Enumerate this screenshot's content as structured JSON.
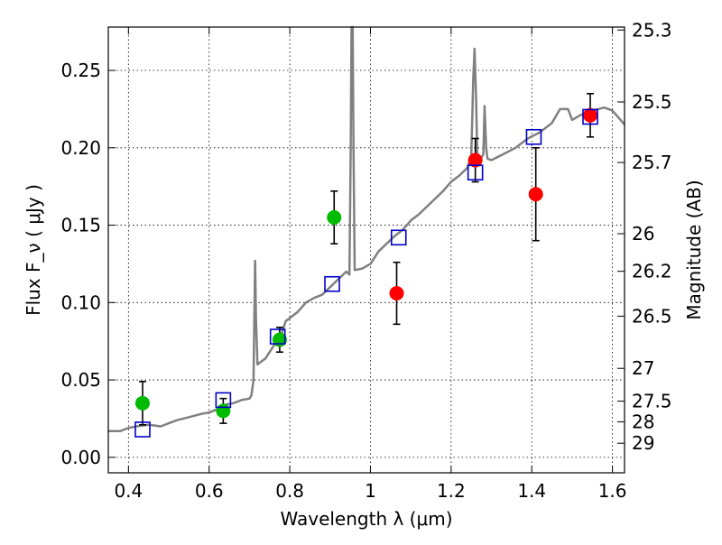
{
  "chart_data": {
    "type": "scatter",
    "xlabel": "Wavelength  λ (μm)",
    "ylabel": "Flux  F_ν  ( μJy )",
    "y2label": "Magnitude (AB)",
    "xlim": [
      0.35,
      1.63
    ],
    "ylim": [
      -0.01,
      0.278
    ],
    "grid": true,
    "x_ticks": [
      0.4,
      0.6,
      0.8,
      1,
      1.2,
      1.4,
      1.6
    ],
    "x_tick_labels": [
      "0.4",
      "0.6",
      "0.8",
      "1",
      "1.2",
      "1.4",
      "1.6"
    ],
    "y_ticks": [
      0.0,
      0.05,
      0.1,
      0.15,
      0.2,
      0.25
    ],
    "y_tick_labels": [
      "0.00",
      "0.05",
      "0.10",
      "0.15",
      "0.20",
      "0.25"
    ],
    "mag_ticks": [
      {
        "label": "25.3",
        "flux": 0.2761
      },
      {
        "label": "25.5",
        "flux": 0.2296
      },
      {
        "label": "25.7",
        "flux": 0.1905
      },
      {
        "label": "26",
        "flux": 0.1445
      },
      {
        "label": "26.2",
        "flux": 0.1202
      },
      {
        "label": "26.5",
        "flux": 0.0912
      },
      {
        "label": "27",
        "flux": 0.0575
      },
      {
        "label": "27.5",
        "flux": 0.0363
      },
      {
        "label": "28",
        "flux": 0.0229
      },
      {
        "label": "29",
        "flux": 0.0091
      }
    ],
    "model_spectrum": {
      "color": "#808080",
      "points": [
        [
          0.35,
          0.017
        ],
        [
          0.38,
          0.017
        ],
        [
          0.4,
          0.019
        ],
        [
          0.42,
          0.02
        ],
        [
          0.45,
          0.021
        ],
        [
          0.48,
          0.02
        ],
        [
          0.5,
          0.022
        ],
        [
          0.52,
          0.024
        ],
        [
          0.55,
          0.026
        ],
        [
          0.58,
          0.028
        ],
        [
          0.6,
          0.029
        ],
        [
          0.62,
          0.031
        ],
        [
          0.64,
          0.034
        ],
        [
          0.66,
          0.035
        ],
        [
          0.68,
          0.037
        ],
        [
          0.7,
          0.038
        ],
        [
          0.705,
          0.04
        ],
        [
          0.71,
          0.05
        ],
        [
          0.712,
          0.09
        ],
        [
          0.714,
          0.127
        ],
        [
          0.716,
          0.09
        ],
        [
          0.72,
          0.06
        ],
        [
          0.74,
          0.064
        ],
        [
          0.76,
          0.072
        ],
        [
          0.78,
          0.08
        ],
        [
          0.79,
          0.088
        ],
        [
          0.8,
          0.09
        ],
        [
          0.82,
          0.094
        ],
        [
          0.84,
          0.1
        ],
        [
          0.86,
          0.103
        ],
        [
          0.88,
          0.105
        ],
        [
          0.9,
          0.11
        ],
        [
          0.92,
          0.115
        ],
        [
          0.94,
          0.12
        ],
        [
          0.948,
          0.118
        ],
        [
          0.951,
          0.2
        ],
        [
          0.953,
          0.278
        ],
        [
          0.956,
          0.278
        ],
        [
          0.958,
          0.2
        ],
        [
          0.961,
          0.121
        ],
        [
          0.98,
          0.122
        ],
        [
          1.0,
          0.125
        ],
        [
          1.02,
          0.133
        ],
        [
          1.04,
          0.138
        ],
        [
          1.06,
          0.143
        ],
        [
          1.08,
          0.147
        ],
        [
          1.1,
          0.153
        ],
        [
          1.12,
          0.157
        ],
        [
          1.14,
          0.162
        ],
        [
          1.16,
          0.167
        ],
        [
          1.18,
          0.172
        ],
        [
          1.2,
          0.178
        ],
        [
          1.22,
          0.182
        ],
        [
          1.24,
          0.187
        ],
        [
          1.25,
          0.195
        ],
        [
          1.255,
          0.245
        ],
        [
          1.258,
          0.264
        ],
        [
          1.262,
          0.23
        ],
        [
          1.265,
          0.192
        ],
        [
          1.27,
          0.191
        ],
        [
          1.28,
          0.196
        ],
        [
          1.283,
          0.227
        ],
        [
          1.287,
          0.2
        ],
        [
          1.29,
          0.193
        ],
        [
          1.3,
          0.192
        ],
        [
          1.33,
          0.196
        ],
        [
          1.36,
          0.2
        ],
        [
          1.39,
          0.206
        ],
        [
          1.42,
          0.21
        ],
        [
          1.45,
          0.216
        ],
        [
          1.47,
          0.225
        ],
        [
          1.49,
          0.225
        ],
        [
          1.5,
          0.218
        ],
        [
          1.52,
          0.221
        ],
        [
          1.55,
          0.224
        ],
        [
          1.58,
          0.226
        ],
        [
          1.6,
          0.224
        ],
        [
          1.63,
          0.215
        ]
      ]
    },
    "series": [
      {
        "marker": "circle",
        "color": "#00bb00",
        "points": [
          {
            "x": 0.435,
            "y": 0.035,
            "err": 0.014
          },
          {
            "x": 0.635,
            "y": 0.03,
            "err": 0.008
          },
          {
            "x": 0.775,
            "y": 0.076,
            "err": 0.008
          },
          {
            "x": 0.91,
            "y": 0.155,
            "err": 0.017
          }
        ]
      },
      {
        "marker": "circle",
        "color": "#ff0000",
        "points": [
          {
            "x": 1.065,
            "y": 0.106,
            "err": 0.02
          },
          {
            "x": 1.26,
            "y": 0.192,
            "err": 0.014
          },
          {
            "x": 1.41,
            "y": 0.17,
            "err": 0.03
          },
          {
            "x": 1.545,
            "y": 0.221,
            "err": 0.014
          }
        ]
      },
      {
        "marker": "open-square",
        "color": "#0000cc",
        "points": [
          {
            "x": 0.435,
            "y": 0.018
          },
          {
            "x": 0.635,
            "y": 0.037
          },
          {
            "x": 0.77,
            "y": 0.078
          },
          {
            "x": 0.905,
            "y": 0.112
          },
          {
            "x": 1.07,
            "y": 0.142
          },
          {
            "x": 1.26,
            "y": 0.184
          },
          {
            "x": 1.405,
            "y": 0.207
          },
          {
            "x": 1.545,
            "y": 0.22
          }
        ]
      }
    ]
  }
}
